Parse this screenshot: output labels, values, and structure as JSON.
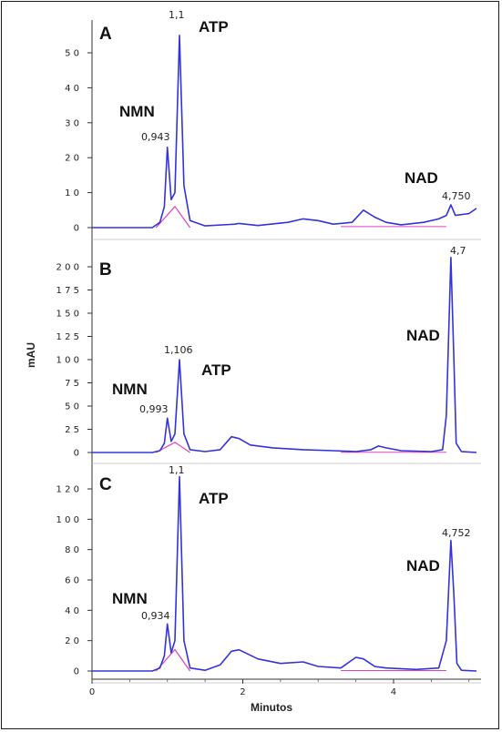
{
  "chart_data": {
    "type": "line",
    "xlabel": "Minutos",
    "ylabel": "mAU",
    "x_range": [
      0,
      5.1
    ],
    "x_ticks": [
      0,
      2,
      4
    ],
    "x_tick_labels": [
      "0",
      "2",
      "4"
    ],
    "colors": {
      "trace": "#3333dd",
      "baseline": "#e040c0"
    },
    "panels": [
      {
        "label": "A",
        "ylim": [
          -3,
          58
        ],
        "y_ticks": [
          0,
          10,
          20,
          30,
          40,
          50
        ],
        "y_tick_labels": [
          "0",
          "1 0",
          "2 0",
          "3 0",
          "4 0",
          "5 0"
        ],
        "peaks": [
          {
            "name": "NMN",
            "rt": 0.943,
            "rt_label": "0,943",
            "height": 23
          },
          {
            "name": "ATP",
            "rt": 1.1,
            "rt_label": "1,1",
            "height": 55
          },
          {
            "name": "NAD",
            "rt": 4.75,
            "rt_label": "4,750",
            "height": 6.5
          }
        ],
        "trace": [
          [
            0,
            0
          ],
          [
            0.8,
            0
          ],
          [
            0.9,
            1.5
          ],
          [
            0.96,
            6
          ],
          [
            1.0,
            23
          ],
          [
            1.05,
            8
          ],
          [
            1.1,
            10
          ],
          [
            1.16,
            55
          ],
          [
            1.22,
            12
          ],
          [
            1.3,
            2
          ],
          [
            1.5,
            0.5
          ],
          [
            1.9,
            1
          ],
          [
            1.95,
            1.2
          ],
          [
            2.2,
            0.6
          ],
          [
            2.6,
            1.5
          ],
          [
            2.8,
            2.5
          ],
          [
            3.0,
            2
          ],
          [
            3.2,
            1
          ],
          [
            3.45,
            1.5
          ],
          [
            3.6,
            5
          ],
          [
            3.75,
            3
          ],
          [
            3.9,
            1.5
          ],
          [
            4.1,
            0.8
          ],
          [
            4.4,
            1.5
          ],
          [
            4.6,
            2.5
          ],
          [
            4.7,
            3.5
          ],
          [
            4.76,
            6.5
          ],
          [
            4.82,
            3.5
          ],
          [
            5.0,
            4
          ],
          [
            5.1,
            5.5
          ]
        ]
      },
      {
        "label": "B",
        "ylim": [
          -5,
          215
        ],
        "y_ticks": [
          0,
          25,
          50,
          75,
          100,
          125,
          150,
          175,
          200
        ],
        "y_tick_labels": [
          "0",
          "2 5",
          "5 0",
          "7 5",
          "1 0 0",
          "1 2 5",
          "1 5 0",
          "1 7 5",
          "2 0 0"
        ],
        "peaks": [
          {
            "name": "NMN",
            "rt": 0.993,
            "rt_label": "0,993",
            "height": 37
          },
          {
            "name": "ATP",
            "rt": 1.106,
            "rt_label": "1,106",
            "height": 100
          },
          {
            "name": "NAD",
            "rt": 4.7,
            "rt_label": "4,7",
            "height": 210
          }
        ],
        "trace": [
          [
            0,
            0
          ],
          [
            0.8,
            0
          ],
          [
            0.9,
            2
          ],
          [
            0.96,
            10
          ],
          [
            1.0,
            37
          ],
          [
            1.05,
            12
          ],
          [
            1.1,
            20
          ],
          [
            1.16,
            100
          ],
          [
            1.22,
            20
          ],
          [
            1.3,
            3
          ],
          [
            1.5,
            1
          ],
          [
            1.7,
            3
          ],
          [
            1.85,
            17
          ],
          [
            1.95,
            15
          ],
          [
            2.1,
            8
          ],
          [
            2.4,
            5
          ],
          [
            2.8,
            3
          ],
          [
            3.2,
            2
          ],
          [
            3.5,
            1
          ],
          [
            3.7,
            3
          ],
          [
            3.8,
            7
          ],
          [
            3.9,
            5
          ],
          [
            4.1,
            2
          ],
          [
            4.5,
            1
          ],
          [
            4.65,
            3
          ],
          [
            4.7,
            40
          ],
          [
            4.76,
            210
          ],
          [
            4.8,
            100
          ],
          [
            4.83,
            10
          ],
          [
            4.9,
            1
          ],
          [
            5.1,
            0
          ]
        ]
      },
      {
        "label": "C",
        "ylim": [
          -2,
          132
        ],
        "y_ticks": [
          0,
          20,
          40,
          60,
          80,
          100,
          120
        ],
        "y_tick_labels": [
          "0",
          "2 0",
          "4 0",
          "6 0",
          "8 0",
          "1 0 0",
          "1 2 0"
        ],
        "peaks": [
          {
            "name": "NMN",
            "rt": 0.934,
            "rt_label": "0,934",
            "height": 31
          },
          {
            "name": "ATP",
            "rt": 1.1,
            "rt_label": "1,1",
            "height": 128
          },
          {
            "name": "NAD",
            "rt": 4.752,
            "rt_label": "4,752",
            "height": 86
          }
        ],
        "trace": [
          [
            0,
            0
          ],
          [
            0.8,
            0
          ],
          [
            0.9,
            2
          ],
          [
            0.96,
            10
          ],
          [
            1.0,
            31
          ],
          [
            1.05,
            12
          ],
          [
            1.1,
            20
          ],
          [
            1.16,
            128
          ],
          [
            1.22,
            20
          ],
          [
            1.3,
            2
          ],
          [
            1.5,
            0.5
          ],
          [
            1.7,
            4
          ],
          [
            1.85,
            13
          ],
          [
            1.95,
            14
          ],
          [
            2.2,
            8
          ],
          [
            2.5,
            5
          ],
          [
            2.8,
            6
          ],
          [
            3.0,
            3
          ],
          [
            3.3,
            2
          ],
          [
            3.5,
            9
          ],
          [
            3.6,
            8
          ],
          [
            3.75,
            3
          ],
          [
            3.9,
            2
          ],
          [
            4.3,
            1
          ],
          [
            4.6,
            2
          ],
          [
            4.7,
            20
          ],
          [
            4.76,
            86
          ],
          [
            4.8,
            50
          ],
          [
            4.84,
            5
          ],
          [
            4.9,
            0.5
          ],
          [
            5.1,
            0
          ]
        ]
      }
    ]
  }
}
